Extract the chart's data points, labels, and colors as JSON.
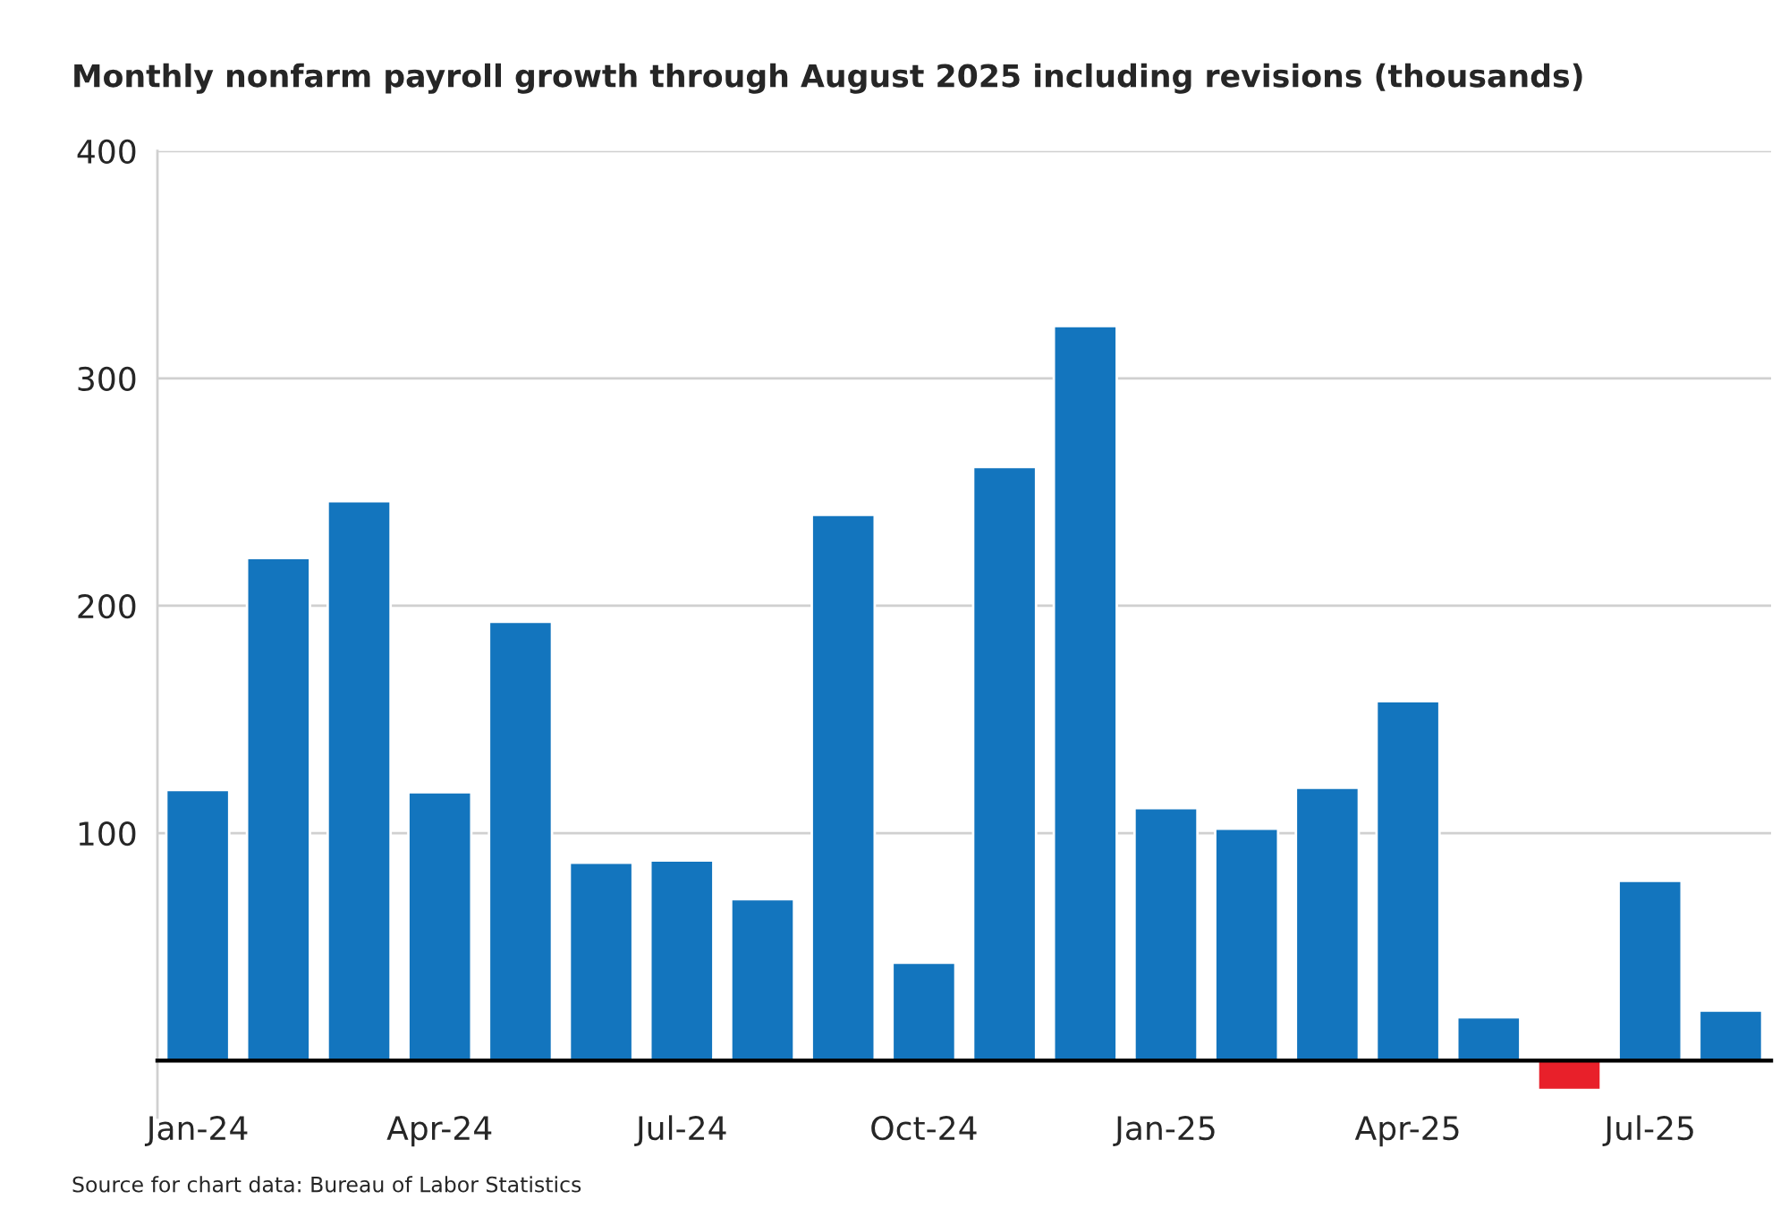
{
  "chart_data": {
    "type": "bar",
    "title": "Monthly nonfarm payroll growth through August 2025 including revisions (thousands)",
    "categories": [
      "Jan-24",
      null,
      null,
      "Apr-24",
      null,
      null,
      "Jul-24",
      null,
      null,
      "Oct-24",
      null,
      null,
      "Jan-25",
      null,
      null,
      "Apr-25",
      null,
      null,
      "Jul-25",
      null
    ],
    "values": [
      119,
      221,
      246,
      118,
      193,
      87,
      88,
      71,
      240,
      43,
      261,
      323,
      111,
      102,
      120,
      158,
      19,
      -13,
      79,
      22
    ],
    "colors": [
      "#1375be",
      "#1375be",
      "#1375be",
      "#1375be",
      "#1375be",
      "#1375be",
      "#1375be",
      "#1375be",
      "#1375be",
      "#1375be",
      "#1375be",
      "#1375be",
      "#1375be",
      "#1375be",
      "#1375be",
      "#1375be",
      "#1375be",
      "#e8202a",
      "#1375be",
      "#1375be"
    ],
    "ylim": [
      -25,
      400
    ],
    "yticks": [
      100,
      200,
      300,
      400
    ],
    "grid": "y",
    "annotations": [
      "Source for chart data: Bureau of Labor Statistics"
    ]
  }
}
